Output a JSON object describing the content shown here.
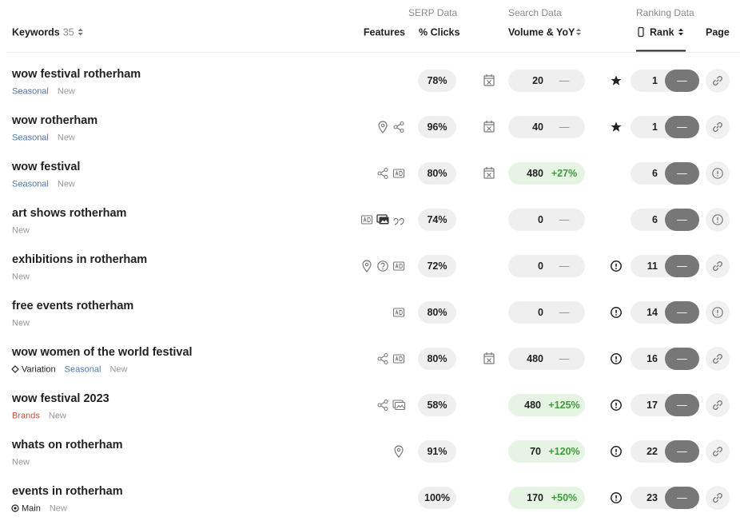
{
  "header": {
    "groups": [
      "SERP Data",
      "Search Data",
      "Ranking Data"
    ],
    "keywords": "Keywords",
    "count": "35",
    "features": "Features",
    "clicks": "% Clicks",
    "volume": "Volume & YoY",
    "rank": "Rank",
    "page": "Page"
  },
  "rows": [
    {
      "keyword": "wow festival rotherham",
      "tags": [
        {
          "text": "Seasonal",
          "color": "#4f79a8"
        },
        {
          "text": "New",
          "color": "#9a9a9a"
        }
      ],
      "clicks": "78%",
      "volume": "20",
      "yoy": "—",
      "rank": "1",
      "change": "—"
    },
    {
      "keyword": "wow rotherham",
      "tags": [
        {
          "text": "Seasonal",
          "color": "#4f79a8"
        },
        {
          "text": "New",
          "color": "#9a9a9a"
        }
      ],
      "clicks": "96%",
      "volume": "40",
      "yoy": "—",
      "rank": "1",
      "change": "—"
    },
    {
      "keyword": "wow festival",
      "tags": [
        {
          "text": "Seasonal",
          "color": "#4f79a8"
        },
        {
          "text": "New",
          "color": "#9a9a9a"
        }
      ],
      "clicks": "80%",
      "volume": "480",
      "yoy": "+27%",
      "rank": "6",
      "change": "—"
    },
    {
      "keyword": "art shows rotherham",
      "tags": [
        {
          "text": "New",
          "color": "#9a9a9a"
        }
      ],
      "clicks": "74%",
      "volume": "0",
      "yoy": "—",
      "rank": "6",
      "change": "—"
    },
    {
      "keyword": "exhibitions in rotherham",
      "tags": [
        {
          "text": "New",
          "color": "#9a9a9a"
        }
      ],
      "clicks": "72%",
      "volume": "0",
      "yoy": "—",
      "rank": "11",
      "change": "—"
    },
    {
      "keyword": "free events rotherham",
      "tags": [
        {
          "text": "New",
          "color": "#9a9a9a"
        }
      ],
      "clicks": "80%",
      "volume": "0",
      "yoy": "—",
      "rank": "14",
      "change": "—"
    },
    {
      "keyword": "wow women of the world festival",
      "tags": [
        {
          "text": "Variation",
          "color": "#222222"
        },
        {
          "text": "Seasonal",
          "color": "#4f79a8"
        },
        {
          "text": "New",
          "color": "#9a9a9a"
        }
      ],
      "clicks": "80%",
      "volume": "480",
      "yoy": "—",
      "rank": "16",
      "change": "—"
    },
    {
      "keyword": "wow festival 2023",
      "tags": [
        {
          "text": "Brands",
          "color": "#c8553d"
        },
        {
          "text": "New",
          "color": "#9a9a9a"
        }
      ],
      "clicks": "58%",
      "volume": "480",
      "yoy": "+125%",
      "rank": "17",
      "change": "—"
    },
    {
      "keyword": "whats on rotherham",
      "tags": [
        {
          "text": "New",
          "color": "#9a9a9a"
        }
      ],
      "clicks": "91%",
      "volume": "70",
      "yoy": "+120%",
      "rank": "22",
      "change": "—"
    },
    {
      "keyword": "events in rotherham",
      "tags": [
        {
          "text": "Main",
          "color": "#222222"
        },
        {
          "text": "New",
          "color": "#9a9a9a"
        }
      ],
      "clicks": "100%",
      "volume": "170",
      "yoy": "+50%",
      "rank": "23",
      "change": "—"
    }
  ]
}
